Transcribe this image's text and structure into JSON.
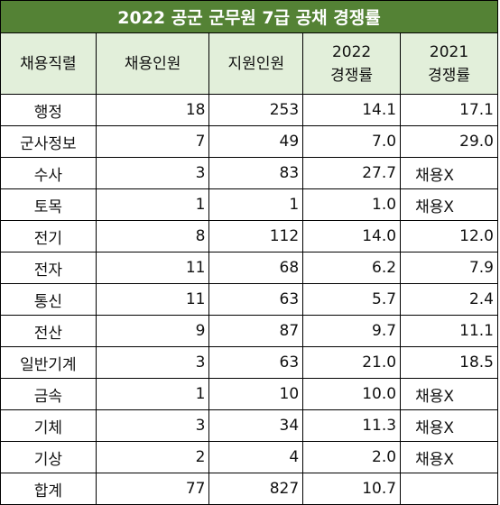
{
  "table": {
    "title": "2022 공군 군무원 7급 공채 경쟁률",
    "headers": {
      "job": "채용직렬",
      "hires": "채용인원",
      "applicants": "지원인원",
      "rate2022_year": "2022",
      "rate2022_label": "경쟁률",
      "rate2021_year": "2021",
      "rate2021_label": "경쟁률"
    },
    "rows": [
      {
        "job": "행정",
        "hires": "18",
        "applicants": "253",
        "rate2022": "14.1",
        "rate2021": "17.1",
        "rate2021_text": false
      },
      {
        "job": "군사정보",
        "hires": "7",
        "applicants": "49",
        "rate2022": "7.0",
        "rate2021": "29.0",
        "rate2021_text": false
      },
      {
        "job": "수사",
        "hires": "3",
        "applicants": "83",
        "rate2022": "27.7",
        "rate2021": "채용X",
        "rate2021_text": true
      },
      {
        "job": "토목",
        "hires": "1",
        "applicants": "1",
        "rate2022": "1.0",
        "rate2021": "채용X",
        "rate2021_text": true
      },
      {
        "job": "전기",
        "hires": "8",
        "applicants": "112",
        "rate2022": "14.0",
        "rate2021": "12.0",
        "rate2021_text": false
      },
      {
        "job": "전자",
        "hires": "11",
        "applicants": "68",
        "rate2022": "6.2",
        "rate2021": "7.9",
        "rate2021_text": false
      },
      {
        "job": "통신",
        "hires": "11",
        "applicants": "63",
        "rate2022": "5.7",
        "rate2021": "2.4",
        "rate2021_text": false
      },
      {
        "job": "전산",
        "hires": "9",
        "applicants": "87",
        "rate2022": "9.7",
        "rate2021": "11.1",
        "rate2021_text": false
      },
      {
        "job": "일반기계",
        "hires": "3",
        "applicants": "63",
        "rate2022": "21.0",
        "rate2021": "18.5",
        "rate2021_text": false
      },
      {
        "job": "금속",
        "hires": "1",
        "applicants": "10",
        "rate2022": "10.0",
        "rate2021": "채용X",
        "rate2021_text": true
      },
      {
        "job": "기체",
        "hires": "3",
        "applicants": "34",
        "rate2022": "11.3",
        "rate2021": "채용X",
        "rate2021_text": true
      },
      {
        "job": "기상",
        "hires": "2",
        "applicants": "4",
        "rate2022": "2.0",
        "rate2021": "채용X",
        "rate2021_text": true
      }
    ],
    "total": {
      "job": "합계",
      "hires": "77",
      "applicants": "827",
      "rate2022": "10.7",
      "rate2021": ""
    }
  },
  "colors": {
    "title_bg": "#548235",
    "header_bg": "#e2efda",
    "border": "#000000"
  }
}
